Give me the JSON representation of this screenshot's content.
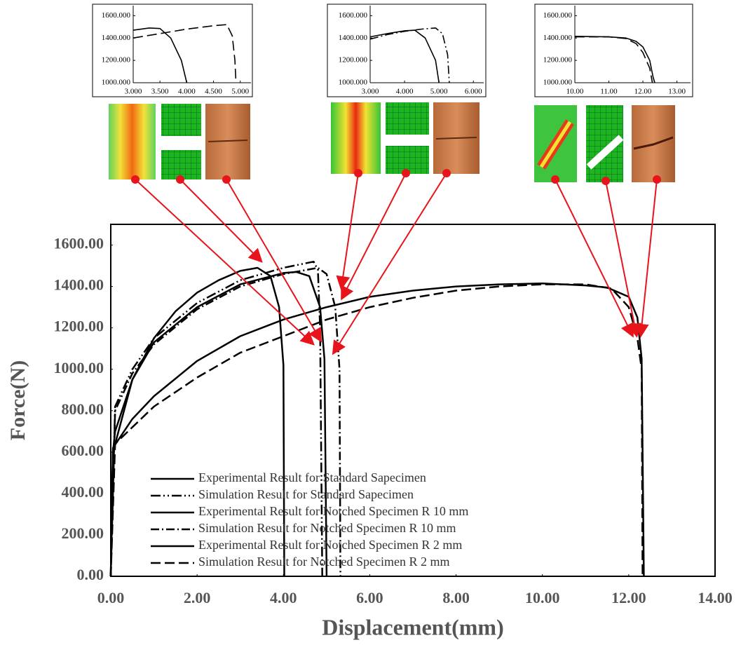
{
  "chart_data": [
    {
      "type": "line",
      "xlabel": "Displacement(mm)",
      "ylabel": "Force(N)",
      "xlim": [
        0,
        14
      ],
      "ylim": [
        0,
        1700
      ],
      "xticks": [
        {
          "value": 0,
          "label": "0.00"
        },
        {
          "value": 2,
          "label": "2.00"
        },
        {
          "value": 4,
          "label": "4.00"
        },
        {
          "value": 6,
          "label": "6.00"
        },
        {
          "value": 8,
          "label": "8.00"
        },
        {
          "value": 10,
          "label": "10.00"
        },
        {
          "value": 12,
          "label": "12.00"
        },
        {
          "value": 14,
          "label": "14.00"
        }
      ],
      "yticks": [
        {
          "value": 0,
          "label": "0.00"
        },
        {
          "value": 200,
          "label": "200.00"
        },
        {
          "value": 400,
          "label": "400.00"
        },
        {
          "value": 600,
          "label": "600.00"
        },
        {
          "value": 800,
          "label": "800.00"
        },
        {
          "value": 1000,
          "label": "1000.00"
        },
        {
          "value": 1200,
          "label": "1200.00"
        },
        {
          "value": 1400,
          "label": "1400.00"
        },
        {
          "value": 1600,
          "label": "1600.00"
        }
      ],
      "legend": "lower center",
      "series": [
        {
          "name": "Experimental Result for Standard Sapecimen",
          "color": "#000000",
          "dash": "solid",
          "x": [
            0,
            0.05,
            0.1,
            0.5,
            1,
            1.5,
            2,
            2.5,
            3,
            3.4,
            3.7,
            3.9,
            4.0,
            4.02
          ],
          "values": [
            0,
            600,
            700,
            950,
            1150,
            1280,
            1370,
            1430,
            1475,
            1490,
            1450,
            1300,
            1020,
            0
          ]
        },
        {
          "name": "Simulation Result for Standard Sapecimen",
          "color": "#000000",
          "dash": "dash-dot-dot",
          "x": [
            0,
            0.1,
            0.5,
            1,
            2,
            3,
            4,
            4.7,
            4.8,
            4.85,
            4.9
          ],
          "values": [
            0,
            820,
            1000,
            1150,
            1320,
            1430,
            1490,
            1520,
            1480,
            1200,
            0
          ]
        },
        {
          "name": "Experimental Result for Notched Specimen R 10 mm",
          "color": "#000000",
          "dash": "solid",
          "x": [
            0,
            0.05,
            0.5,
            1,
            2,
            3,
            4,
            4.3,
            4.6,
            4.85,
            4.95,
            5.0
          ],
          "values": [
            0,
            600,
            950,
            1130,
            1300,
            1410,
            1465,
            1470,
            1450,
            1300,
            1050,
            0
          ]
        },
        {
          "name": "Simulation Result for Notched Specimen R 10 mm",
          "color": "#000000",
          "dash": "dash-dot",
          "x": [
            0,
            0.1,
            0.5,
            1,
            2,
            3,
            4,
            4.8,
            5.0,
            5.2,
            5.3,
            5.32
          ],
          "values": [
            0,
            800,
            980,
            1120,
            1290,
            1400,
            1460,
            1490,
            1460,
            1300,
            1000,
            0
          ]
        },
        {
          "name": "Experimental Result for Notched Specimen R 2 mm",
          "color": "#000000",
          "dash": "solid",
          "x": [
            0,
            0.05,
            0.5,
            1,
            2,
            3,
            4,
            5,
            6,
            7,
            8,
            9,
            10,
            11,
            11.5,
            12,
            12.2,
            12.3,
            12.35
          ],
          "values": [
            0,
            620,
            760,
            870,
            1040,
            1160,
            1240,
            1300,
            1350,
            1380,
            1400,
            1410,
            1415,
            1405,
            1395,
            1350,
            1250,
            1050,
            0
          ]
        },
        {
          "name": "Simulation Result for Notched Specimen R 2 mm",
          "color": "#000000",
          "dash": "dash",
          "x": [
            0,
            0.1,
            0.5,
            1,
            2,
            3,
            4,
            5,
            6,
            7,
            8,
            9,
            10,
            11,
            11.6,
            12,
            12.2,
            12.3,
            12.32
          ],
          "values": [
            0,
            640,
            720,
            820,
            960,
            1080,
            1160,
            1240,
            1300,
            1345,
            1380,
            1400,
            1410,
            1410,
            1390,
            1300,
            1150,
            1000,
            0
          ]
        }
      ]
    },
    {
      "type": "line",
      "xlim": [
        3,
        5.2
      ],
      "ylim": [
        1000,
        1690
      ],
      "xticks": [
        {
          "value": 3,
          "label": "3.000"
        },
        {
          "value": 3.5,
          "label": "3.500"
        },
        {
          "value": 4,
          "label": "4.000"
        },
        {
          "value": 4.5,
          "label": "4.500"
        },
        {
          "value": 5,
          "label": "5.000"
        }
      ],
      "yticks": [
        {
          "value": 1000,
          "label": "1000.000"
        },
        {
          "value": 1200,
          "label": "1200.000"
        },
        {
          "value": 1400,
          "label": "1400.000"
        },
        {
          "value": 1600,
          "label": "1600.000"
        }
      ],
      "series": [
        {
          "color": "#000000",
          "dash": "solid",
          "x": [
            3,
            3.3,
            3.5,
            3.7,
            3.9,
            4.0
          ],
          "values": [
            1470,
            1490,
            1485,
            1400,
            1200,
            1000
          ]
        },
        {
          "color": "#000000",
          "dash": "dash",
          "x": [
            3,
            3.5,
            4,
            4.5,
            4.75,
            4.85,
            4.9,
            4.92
          ],
          "values": [
            1400,
            1440,
            1480,
            1510,
            1520,
            1420,
            1200,
            1000
          ]
        }
      ]
    },
    {
      "type": "line",
      "xlim": [
        3,
        6.3
      ],
      "ylim": [
        1000,
        1690
      ],
      "xticks": [
        {
          "value": 3,
          "label": "3.000"
        },
        {
          "value": 4,
          "label": "4.000"
        },
        {
          "value": 5,
          "label": "5.000"
        },
        {
          "value": 6,
          "label": "6.000"
        }
      ],
      "yticks": [
        {
          "value": 1000,
          "label": "1000.000"
        },
        {
          "value": 1200,
          "label": "1200.000"
        },
        {
          "value": 1400,
          "label": "1400.000"
        },
        {
          "value": 1600,
          "label": "1600.000"
        }
      ],
      "series": [
        {
          "color": "#000000",
          "dash": "solid",
          "x": [
            3,
            3.5,
            4,
            4.3,
            4.6,
            4.9,
            5.0
          ],
          "values": [
            1410,
            1440,
            1465,
            1470,
            1400,
            1200,
            1000
          ]
        },
        {
          "color": "#000000",
          "dash": "dash-dot",
          "x": [
            3,
            3.5,
            4,
            4.5,
            4.9,
            5.1,
            5.25,
            5.3
          ],
          "values": [
            1390,
            1430,
            1460,
            1480,
            1490,
            1440,
            1250,
            1000
          ]
        }
      ]
    },
    {
      "type": "line",
      "xlim": [
        10,
        13.4
      ],
      "ylim": [
        1000,
        1690
      ],
      "xticks": [
        {
          "value": 10,
          "label": "10.00"
        },
        {
          "value": 11,
          "label": "11.00"
        },
        {
          "value": 12,
          "label": "12.00"
        },
        {
          "value": 13,
          "label": "13.00"
        }
      ],
      "yticks": [
        {
          "value": 1000,
          "label": "1000.000"
        },
        {
          "value": 1200,
          "label": "1200.000"
        },
        {
          "value": 1400,
          "label": "1400.000"
        },
        {
          "value": 1600,
          "label": "1600.000"
        }
      ],
      "series": [
        {
          "color": "#000000",
          "dash": "solid",
          "x": [
            10,
            11,
            11.5,
            11.8,
            12,
            12.2,
            12.3,
            12.35
          ],
          "values": [
            1415,
            1410,
            1400,
            1370,
            1320,
            1200,
            1050,
            1000
          ]
        },
        {
          "color": "#000000",
          "dash": "dash",
          "x": [
            10,
            11,
            11.5,
            11.8,
            12,
            12.2,
            12.28
          ],
          "values": [
            1410,
            1410,
            1395,
            1350,
            1270,
            1130,
            1000
          ]
        }
      ]
    }
  ]
}
